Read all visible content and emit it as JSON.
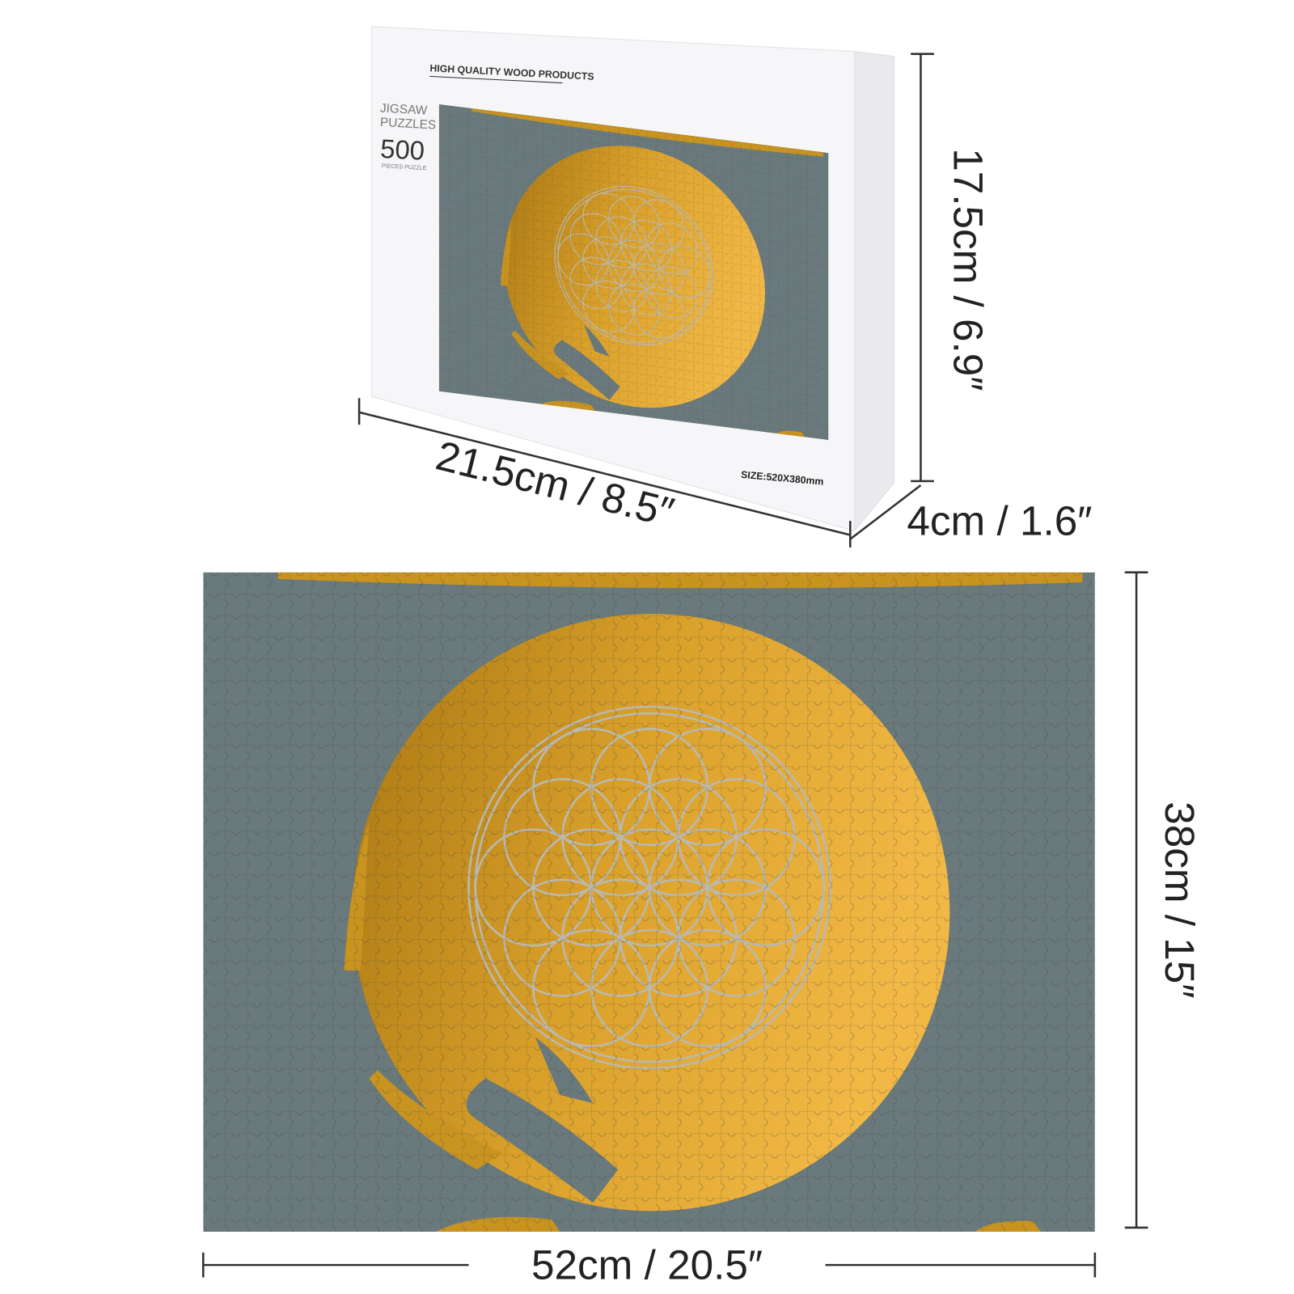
{
  "box": {
    "tagline": "HIGH QUALITY WOOD PRODUCTS",
    "brand_lines": [
      "JIGSAW",
      "PUZZLES"
    ],
    "piece_count": "500",
    "piece_caption": "PIECES PUZZLE",
    "size": "SIZE:520X380mm"
  },
  "dimensions": {
    "box_width": "21.5cm / 8.5″",
    "box_height": "17.5cm / 6.9″",
    "box_depth": "4cm / 1.6″",
    "puzzle_height": "38cm / 15″",
    "puzzle_width": "52cm / 20.5″"
  }
}
